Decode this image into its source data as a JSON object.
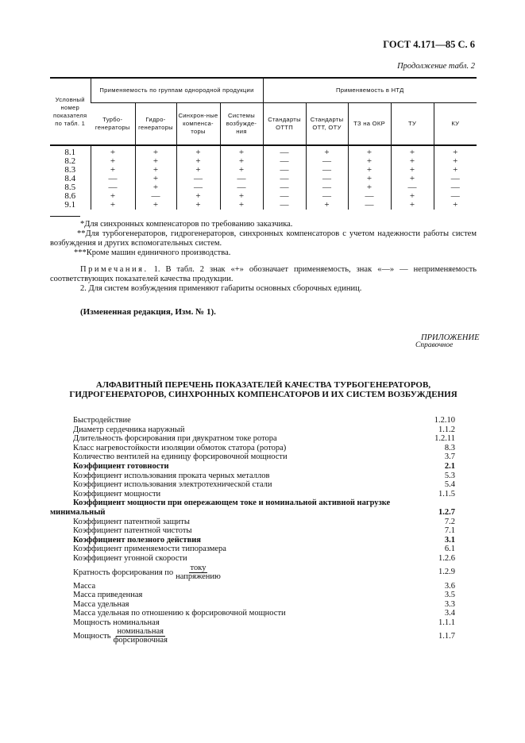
{
  "header": {
    "title": "ГОСТ 4.171—85 С. 6",
    "continuation": "Продолжение табл. 2"
  },
  "table": {
    "col0": "Условный номер показателя по табл. 1",
    "group1": "Применяемость по группам однородной продукции",
    "group2": "Применяемость в НТД",
    "columns": [
      "Турбо-генераторы",
      "Гидро-генераторы",
      "Синхрон-ные компенса-торы",
      "Системы возбужде-ния",
      "Стандарты ОТТП",
      "Стандарты ОТТ, ОТУ",
      "ТЗ на ОКР",
      "ТУ",
      "КУ"
    ],
    "rows": [
      {
        "id": "8.1",
        "cells": [
          "+",
          "+",
          "+",
          "+",
          "—",
          "+",
          "+",
          "+",
          "+"
        ]
      },
      {
        "id": "8.2",
        "cells": [
          "+",
          "+",
          "+",
          "+",
          "—",
          "—",
          "+",
          "+",
          "+"
        ]
      },
      {
        "id": "8.3",
        "cells": [
          "+",
          "+",
          "+",
          "+",
          "—",
          "—",
          "+",
          "+",
          "+"
        ]
      },
      {
        "id": "8.4",
        "cells": [
          "—",
          "+",
          "—",
          "—",
          "—",
          "—",
          "+",
          "+",
          "—"
        ]
      },
      {
        "id": "8.5",
        "cells": [
          "—",
          "+",
          "—",
          "—",
          "—",
          "—",
          "+",
          "—",
          "—"
        ]
      },
      {
        "id": "8.6",
        "cells": [
          "+",
          "—",
          "+",
          "+",
          "—",
          "—",
          "—",
          "+",
          "—"
        ]
      },
      {
        "id": "9.1",
        "cells": [
          "+",
          "+",
          "+",
          "+",
          "—",
          "+",
          "—",
          "+",
          "+"
        ]
      }
    ]
  },
  "footnotes": [
    "*Для синхронных компенсаторов по требованию заказчика.",
    "**Для турбогенераторов, гидрогенераторов, синхронных компенсаторов с учетом надежности работы систем возбуждения и других вспомогательных систем.",
    "***Кроме машин единичного производства."
  ],
  "notes": {
    "label": "Примечания.",
    "note1": "1. В табл. 2 знак «+» обозначает применяемость, знак «—» — неприменяемость соответствующих показателей качества продукции.",
    "note2": "2. Для систем возбуждения применяют габариты основных сборочных единиц."
  },
  "revision": "(Измененная редакция, Изм. № 1).",
  "appendix": {
    "label": "ПРИЛОЖЕНИЕ",
    "type": "Справочное",
    "title1": "АЛФАВИТНЫЙ ПЕРЕЧЕНЬ ПОКАЗАТЕЛЕЙ КАЧЕСТВА ТУРБОГЕНЕРАТОРОВ,",
    "title2": "ГИДРОГЕНЕРАТОРОВ, СИНХРОННЫХ КОМПЕНСАТОРОВ И ИХ СИСТЕМ ВОЗБУЖДЕНИЯ"
  },
  "index": [
    {
      "text": "Быстродействие",
      "num": "1.2.10"
    },
    {
      "text": "Диаметр сердечника наружный",
      "num": "1.1.2"
    },
    {
      "text": "Длительность форсирования при двукратном токе ротора",
      "num": "1.2.11"
    },
    {
      "text": "Класс нагревостойкости изоляции обмоток статора (ротора)",
      "num": "8.3"
    },
    {
      "text": "Количество вентилей на единицу форсировочной мощности",
      "num": "3.7"
    },
    {
      "text": "Коэффициент готовности",
      "num": "2.1",
      "bold": true
    },
    {
      "text": "Коэффициент использования проката черных металлов",
      "num": "5.3"
    },
    {
      "text": "Коэффициент использования электротехнической стали",
      "num": "5.4"
    },
    {
      "text": "Коэффициент мощности",
      "num": "1.1.5"
    },
    {
      "text": "Коэффициент мощности при опережающем токе и номинальной активной нагрузке",
      "text2": "минимальный",
      "num": "1.2.7",
      "bold": true,
      "wrap": true
    },
    {
      "text": "Коэффициент патентной защиты",
      "num": "7.2"
    },
    {
      "text": "Коэффициент патентной чистоты",
      "num": "7.1"
    },
    {
      "text": "Коэффициент полезного действия",
      "num": "3.1",
      "bold": true
    },
    {
      "text": "Коэффициент применяемости типоразмера",
      "num": "6.1"
    },
    {
      "text": "Коэффициент угонной скорости",
      "num": "1.2.6"
    },
    {
      "text": "Кратность форсирования по",
      "frac": [
        "току",
        "напряжению"
      ],
      "num": "1.2.9"
    },
    {
      "text": "Масса",
      "num": "3.6"
    },
    {
      "text": "Масса приведенная",
      "num": "3.5"
    },
    {
      "text": "Масса удельная",
      "num": "3.3"
    },
    {
      "text": "Масса удельная по отношению к форсировочной мощности",
      "num": "3.4"
    },
    {
      "text": "Мощность номинальная",
      "num": "1.1.1"
    },
    {
      "text": "Мощность",
      "frac": [
        "номинальная",
        "форсировочная"
      ],
      "num": "1.1.7"
    }
  ]
}
